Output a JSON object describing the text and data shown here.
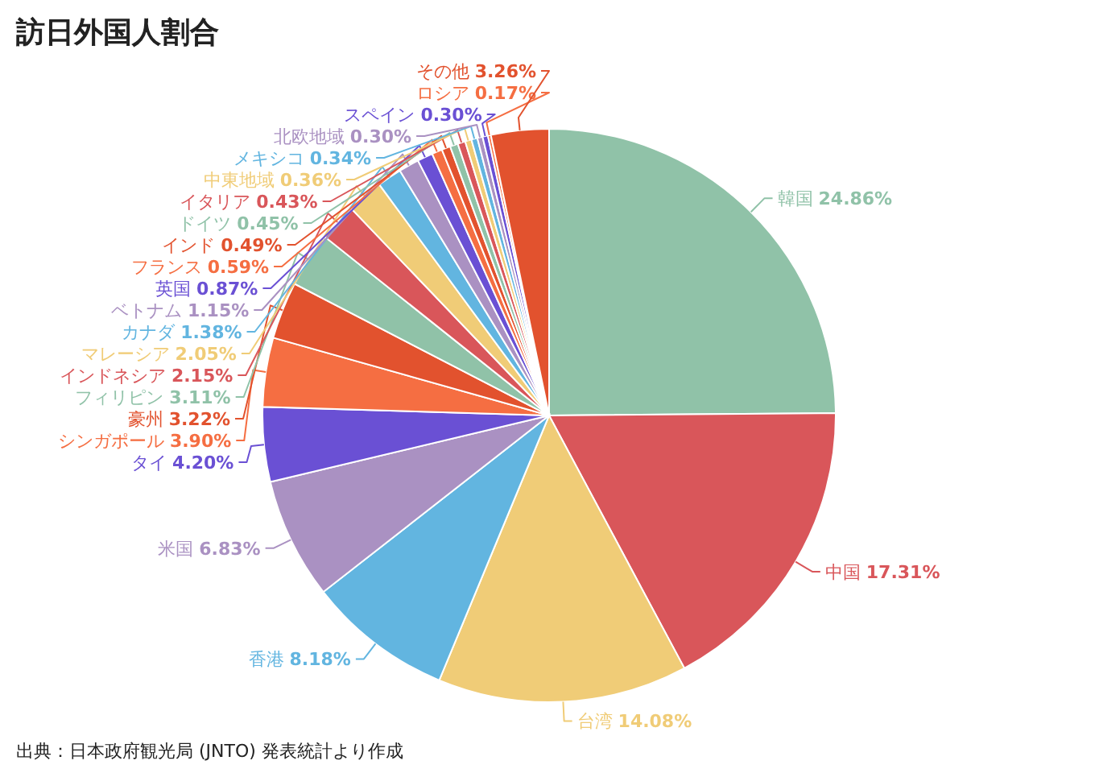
{
  "chart_data": {
    "type": "pie",
    "title": "訪日外国人割合",
    "categories": [
      "韓国",
      "中国",
      "台湾",
      "香港",
      "米国",
      "タイ",
      "シンガポール",
      "豪州",
      "フィリピン",
      "インドネシア",
      "マレーシア",
      "カナダ",
      "ベトナム",
      "英国",
      "フランス",
      "インド",
      "ドイツ",
      "イタリア",
      "中東地域",
      "メキシコ",
      "北欧地域",
      "スペイン",
      "ロシア",
      "その他"
    ],
    "values": [
      24.86,
      17.31,
      14.08,
      8.18,
      6.83,
      4.2,
      3.9,
      3.22,
      3.11,
      2.15,
      2.05,
      1.38,
      1.15,
      0.87,
      0.59,
      0.49,
      0.45,
      0.43,
      0.36,
      0.34,
      0.3,
      0.3,
      0.17,
      3.26
    ],
    "value_labels": [
      "24.86%",
      "17.31%",
      "14.08%",
      "8.18%",
      "6.83%",
      "4.20%",
      "3.90%",
      "3.22%",
      "3.11%",
      "2.15%",
      "2.05%",
      "1.38%",
      "1.15%",
      "0.87%",
      "0.59%",
      "0.49%",
      "0.45%",
      "0.43%",
      "0.36%",
      "0.34%",
      "0.30%",
      "0.30%",
      "0.17%",
      "3.26%"
    ],
    "colors": [
      "#90c2a8",
      "#d9565a",
      "#f0cc77",
      "#62b5e0",
      "#aa91c2",
      "#6a50d4",
      "#f56e42",
      "#e2522e",
      "#90c2a8",
      "#d9565a",
      "#f0cc77",
      "#62b5e0",
      "#aa91c2",
      "#6a50d4",
      "#f56e42",
      "#e2522e",
      "#90c2a8",
      "#d9565a",
      "#f0cc77",
      "#62b5e0",
      "#aa91c2",
      "#6a50d4",
      "#f56e42",
      "#e2522e"
    ],
    "annotations": [
      "出典：日本政府観光局 (JNTO) 発表統計より作成"
    ]
  }
}
